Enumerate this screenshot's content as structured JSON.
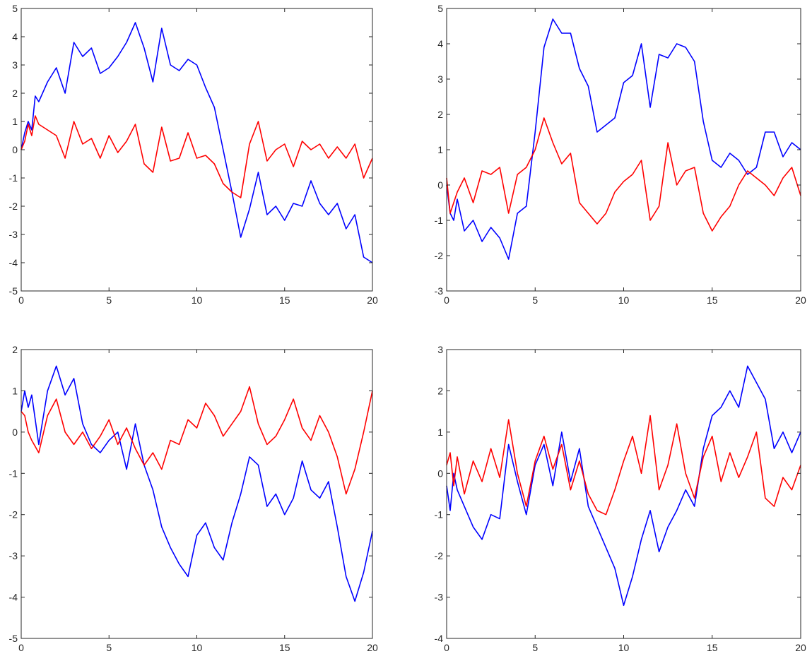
{
  "figure": {
    "colors": {
      "series_a": "#0000ff",
      "series_b": "#ff0000",
      "axis": "#262626"
    }
  },
  "chart_data": [
    {
      "type": "line",
      "title": "",
      "xlabel": "",
      "ylabel": "",
      "xlim": [
        0,
        20
      ],
      "ylim": [
        -5,
        5
      ],
      "xticks": [
        0,
        5,
        10,
        15,
        20
      ],
      "yticks": [
        -5,
        -4,
        -3,
        -2,
        -1,
        0,
        1,
        2,
        3,
        4,
        5
      ],
      "grid": false,
      "series": [
        {
          "color": "#0000ff",
          "x": [
            0,
            0.2,
            0.4,
            0.6,
            0.8,
            1,
            1.5,
            2,
            2.5,
            3,
            3.5,
            4,
            4.5,
            5,
            5.5,
            6,
            6.5,
            7,
            7.5,
            8,
            8.5,
            9,
            9.5,
            10,
            10.5,
            11,
            11.5,
            12,
            12.5,
            13,
            13.5,
            14,
            14.5,
            15,
            15.5,
            16,
            16.5,
            17,
            17.5,
            18,
            18.5,
            19,
            19.5,
            20
          ],
          "y": [
            0,
            0.6,
            1.0,
            0.7,
            1.9,
            1.7,
            2.4,
            2.9,
            2.0,
            3.8,
            3.3,
            3.6,
            2.7,
            2.9,
            3.3,
            3.8,
            4.5,
            3.6,
            2.4,
            4.3,
            3.0,
            2.8,
            3.2,
            3.0,
            2.2,
            1.5,
            0,
            -1.5,
            -3.1,
            -2.1,
            -0.8,
            -2.3,
            -2.0,
            -2.5,
            -1.9,
            -2.0,
            -1.1,
            -1.9,
            -2.3,
            -1.9,
            -2.8,
            -2.3,
            -3.8,
            -4.0
          ]
        },
        {
          "color": "#ff0000",
          "x": [
            0,
            0.2,
            0.4,
            0.6,
            0.8,
            1,
            1.5,
            2,
            2.5,
            3,
            3.5,
            4,
            4.5,
            5,
            5.5,
            6,
            6.5,
            7,
            7.5,
            8,
            8.5,
            9,
            9.5,
            10,
            10.5,
            11,
            11.5,
            12,
            12.5,
            13,
            13.5,
            14,
            14.5,
            15,
            15.5,
            16,
            16.5,
            17,
            17.5,
            18,
            18.5,
            19,
            19.5,
            20
          ],
          "y": [
            0,
            0.3,
            0.9,
            0.5,
            1.2,
            0.9,
            0.7,
            0.5,
            -0.3,
            1.0,
            0.2,
            0.4,
            -0.3,
            0.5,
            -0.1,
            0.3,
            0.9,
            -0.5,
            -0.8,
            0.8,
            -0.4,
            -0.3,
            0.6,
            -0.3,
            -0.2,
            -0.5,
            -1.2,
            -1.5,
            -1.7,
            0.2,
            1.0,
            -0.4,
            0.0,
            0.2,
            -0.6,
            0.3,
            0.0,
            0.2,
            -0.3,
            0.1,
            -0.3,
            0.2,
            -1.0,
            -0.3
          ]
        }
      ]
    },
    {
      "type": "line",
      "title": "",
      "xlabel": "",
      "ylabel": "",
      "xlim": [
        0,
        20
      ],
      "ylim": [
        -3,
        5
      ],
      "xticks": [
        0,
        5,
        10,
        15,
        20
      ],
      "yticks": [
        -3,
        -2,
        -1,
        0,
        1,
        2,
        3,
        4,
        5
      ],
      "grid": false,
      "series": [
        {
          "color": "#0000ff",
          "x": [
            0,
            0.2,
            0.4,
            0.6,
            1,
            1.5,
            2,
            2.5,
            3,
            3.5,
            4,
            4.5,
            5,
            5.5,
            6,
            6.5,
            7,
            7.5,
            8,
            8.5,
            9,
            9.5,
            10,
            10.5,
            11,
            11.5,
            12,
            12.5,
            13,
            13.5,
            14,
            14.5,
            15,
            15.5,
            16,
            16.5,
            17,
            17.5,
            18,
            18.5,
            19,
            19.5,
            20
          ],
          "y": [
            0,
            -0.8,
            -1.0,
            -0.4,
            -1.3,
            -1.0,
            -1.6,
            -1.2,
            -1.5,
            -2.1,
            -0.8,
            -0.6,
            1.5,
            3.9,
            4.7,
            4.3,
            4.3,
            3.3,
            2.8,
            1.5,
            1.7,
            1.9,
            2.9,
            3.1,
            4.0,
            2.2,
            3.7,
            3.6,
            4.0,
            3.9,
            3.5,
            1.8,
            0.7,
            0.5,
            0.9,
            0.7,
            0.3,
            0.5,
            1.5,
            1.5,
            0.8,
            1.2,
            1.0
          ]
        },
        {
          "color": "#ff0000",
          "x": [
            0,
            0.2,
            0.4,
            0.6,
            1,
            1.5,
            2,
            2.5,
            3,
            3.5,
            4,
            4.5,
            5,
            5.5,
            6,
            6.5,
            7,
            7.5,
            8,
            8.5,
            9,
            9.5,
            10,
            10.5,
            11,
            11.5,
            12,
            12.5,
            13,
            13.5,
            14,
            14.5,
            15,
            15.5,
            16,
            16.5,
            17,
            17.5,
            18,
            18.5,
            19,
            19.5,
            20
          ],
          "y": [
            0.2,
            -0.8,
            -0.5,
            -0.2,
            0.2,
            -0.5,
            0.4,
            0.3,
            0.5,
            -0.8,
            0.3,
            0.5,
            1.0,
            1.9,
            1.2,
            0.6,
            0.9,
            -0.5,
            -0.8,
            -1.1,
            -0.8,
            -0.2,
            0.1,
            0.3,
            0.7,
            -1.0,
            -0.6,
            1.2,
            0.0,
            0.4,
            0.5,
            -0.8,
            -1.3,
            -0.9,
            -0.6,
            0.0,
            0.4,
            0.2,
            0.0,
            -0.3,
            0.2,
            0.5,
            -0.3
          ]
        }
      ]
    },
    {
      "type": "line",
      "title": "",
      "xlabel": "",
      "ylabel": "",
      "xlim": [
        0,
        20
      ],
      "ylim": [
        -5,
        2
      ],
      "xticks": [
        0,
        5,
        10,
        15,
        20
      ],
      "yticks": [
        -5,
        -4,
        -3,
        -2,
        -1,
        0,
        1,
        2
      ],
      "grid": false,
      "series": [
        {
          "color": "#0000ff",
          "x": [
            0,
            0.2,
            0.4,
            0.6,
            1,
            1.5,
            2,
            2.5,
            3,
            3.5,
            4,
            4.5,
            5,
            5.5,
            6,
            6.5,
            7,
            7.5,
            8,
            8.5,
            9,
            9.5,
            10,
            10.5,
            11,
            11.5,
            12,
            12.5,
            13,
            13.5,
            14,
            14.5,
            15,
            15.5,
            16,
            16.5,
            17,
            17.5,
            18,
            18.5,
            19,
            19.5,
            20
          ],
          "y": [
            0.5,
            1.0,
            0.6,
            0.9,
            -0.3,
            1.0,
            1.6,
            0.9,
            1.3,
            0.2,
            -0.3,
            -0.5,
            -0.2,
            0.0,
            -0.9,
            0.2,
            -0.8,
            -1.4,
            -2.3,
            -2.8,
            -3.2,
            -3.5,
            -2.5,
            -2.2,
            -2.8,
            -3.1,
            -2.2,
            -1.5,
            -0.6,
            -0.8,
            -1.8,
            -1.5,
            -2.0,
            -1.6,
            -0.7,
            -1.4,
            -1.6,
            -1.2,
            -2.3,
            -3.5,
            -4.1,
            -3.4,
            -2.4
          ]
        },
        {
          "color": "#ff0000",
          "x": [
            0,
            0.2,
            0.4,
            0.6,
            1,
            1.5,
            2,
            2.5,
            3,
            3.5,
            4,
            4.5,
            5,
            5.5,
            6,
            6.5,
            7,
            7.5,
            8,
            8.5,
            9,
            9.5,
            10,
            10.5,
            11,
            11.5,
            12,
            12.5,
            13,
            13.5,
            14,
            14.5,
            15,
            15.5,
            16,
            16.5,
            17,
            17.5,
            18,
            18.5,
            19,
            19.5,
            20
          ],
          "y": [
            0.5,
            0.4,
            0,
            -0.2,
            -0.5,
            0.4,
            0.8,
            0.0,
            -0.3,
            0.0,
            -0.4,
            -0.1,
            0.3,
            -0.3,
            0.1,
            -0.4,
            -0.8,
            -0.5,
            -0.9,
            -0.2,
            -0.3,
            0.3,
            0.1,
            0.7,
            0.4,
            -0.1,
            0.2,
            0.5,
            1.1,
            0.2,
            -0.3,
            -0.1,
            0.3,
            0.8,
            0.1,
            -0.2,
            0.4,
            0.0,
            -0.6,
            -1.5,
            -0.9,
            0.0,
            1.0
          ]
        }
      ]
    },
    {
      "type": "line",
      "title": "",
      "xlabel": "",
      "ylabel": "",
      "xlim": [
        0,
        20
      ],
      "ylim": [
        -4,
        3
      ],
      "xticks": [
        0,
        5,
        10,
        15,
        20
      ],
      "yticks": [
        -4,
        -3,
        -2,
        -1,
        0,
        1,
        2,
        3
      ],
      "grid": false,
      "series": [
        {
          "color": "#0000ff",
          "x": [
            0,
            0.2,
            0.4,
            0.6,
            1,
            1.5,
            2,
            2.5,
            3,
            3.5,
            4,
            4.5,
            5,
            5.5,
            6,
            6.5,
            7,
            7.5,
            8,
            8.5,
            9,
            9.5,
            10,
            10.5,
            11,
            11.5,
            12,
            12.5,
            13,
            13.5,
            14,
            14.5,
            15,
            15.5,
            16,
            16.5,
            17,
            17.5,
            18,
            18.5,
            19,
            19.5,
            20
          ],
          "y": [
            -0.3,
            -0.9,
            0.0,
            -0.4,
            -0.8,
            -1.3,
            -1.6,
            -1.0,
            -1.1,
            0.7,
            -0.2,
            -1.0,
            0.2,
            0.7,
            -0.3,
            1.0,
            -0.2,
            0.6,
            -0.8,
            -1.3,
            -1.8,
            -2.3,
            -3.2,
            -2.5,
            -1.6,
            -0.9,
            -1.9,
            -1.3,
            -0.9,
            -0.4,
            -0.8,
            0.6,
            1.4,
            1.6,
            2.0,
            1.6,
            2.6,
            2.2,
            1.8,
            0.6,
            1.0,
            0.5,
            1.0
          ]
        },
        {
          "color": "#ff0000",
          "x": [
            0,
            0.2,
            0.4,
            0.6,
            1,
            1.5,
            2,
            2.5,
            3,
            3.5,
            4,
            4.5,
            5,
            5.5,
            6,
            6.5,
            7,
            7.5,
            8,
            8.5,
            9,
            9.5,
            10,
            10.5,
            11,
            11.5,
            12,
            12.5,
            13,
            13.5,
            14,
            14.5,
            15,
            15.5,
            16,
            16.5,
            17,
            17.5,
            18,
            18.5,
            19,
            19.5,
            20
          ],
          "y": [
            0.2,
            0.5,
            -0.3,
            0.4,
            -0.5,
            0.3,
            -0.2,
            0.6,
            -0.1,
            1.3,
            0.0,
            -0.8,
            0.3,
            0.9,
            0.1,
            0.7,
            -0.4,
            0.3,
            -0.5,
            -0.9,
            -1.0,
            -0.4,
            0.3,
            0.9,
            0.0,
            1.4,
            -0.4,
            0.2,
            1.2,
            0.0,
            -0.6,
            0.4,
            0.9,
            -0.2,
            0.5,
            -0.1,
            0.4,
            1.0,
            -0.6,
            -0.8,
            -0.1,
            -0.4,
            0.2
          ]
        }
      ]
    }
  ]
}
